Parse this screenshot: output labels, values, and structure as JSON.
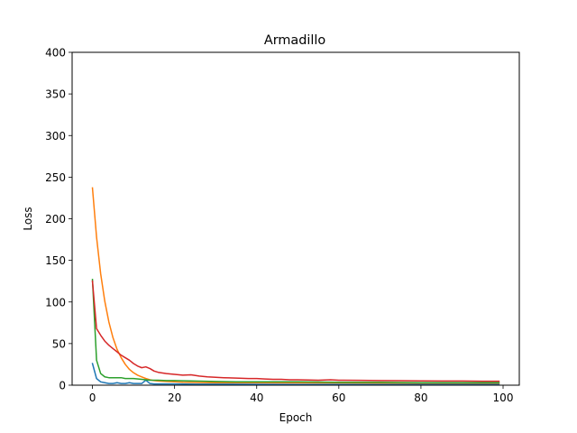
{
  "chart_data": {
    "type": "line",
    "title": "Armadillo",
    "xlabel": "Epoch",
    "ylabel": "Loss",
    "xlim": [
      -4.95,
      103.95
    ],
    "ylim": [
      0,
      400
    ],
    "xticks": [
      0,
      20,
      40,
      60,
      80,
      100
    ],
    "yticks": [
      0,
      50,
      100,
      150,
      200,
      250,
      300,
      350,
      400
    ],
    "grid": false,
    "legend": "none",
    "series": [
      {
        "color": "#1f77b4",
        "x": [
          0,
          1,
          2,
          3,
          4,
          5,
          6,
          7,
          8,
          9,
          10,
          11,
          12,
          13,
          14,
          15,
          16,
          18,
          20,
          25,
          30,
          40,
          50,
          60,
          70,
          80,
          90,
          99
        ],
        "values": [
          26,
          8,
          4,
          3,
          2,
          2,
          3,
          2,
          2,
          3,
          2,
          2,
          2,
          6,
          2,
          1.5,
          1.5,
          1.5,
          1.5,
          1.2,
          1.2,
          1.1,
          1.0,
          1.0,
          1.0,
          1.0,
          1.0,
          1.0
        ]
      },
      {
        "color": "#ff7f0e",
        "x": [
          0,
          1,
          2,
          3,
          4,
          5,
          6,
          7,
          8,
          9,
          10,
          11,
          12,
          13,
          14,
          15,
          16,
          18,
          20,
          22,
          25,
          30,
          35,
          40,
          50,
          60,
          70,
          80,
          90,
          99
        ],
        "values": [
          237,
          178,
          134,
          101,
          76,
          57,
          43,
          33,
          25,
          19,
          15,
          12,
          10,
          8,
          6.5,
          5.5,
          5,
          4.5,
          4,
          3.5,
          3.2,
          3,
          3,
          3,
          2.8,
          2.7,
          2.6,
          2.5,
          2.5,
          2.5
        ]
      },
      {
        "color": "#2ca02c",
        "x": [
          0,
          1,
          2,
          3,
          4,
          5,
          6,
          7,
          8,
          9,
          10,
          12,
          14,
          16,
          18,
          20,
          25,
          30,
          35,
          40,
          50,
          60,
          70,
          80,
          90,
          99
        ],
        "values": [
          127,
          30,
          14,
          10,
          9,
          9,
          9,
          9,
          8,
          8,
          8,
          7,
          6,
          6,
          5.5,
          5.5,
          5,
          4.5,
          4,
          4,
          4,
          3.5,
          3.5,
          3,
          3,
          3
        ]
      },
      {
        "color": "#d62728",
        "x": [
          0,
          1,
          2,
          3,
          4,
          5,
          6,
          7,
          8,
          9,
          10,
          11,
          12,
          13,
          14,
          15,
          16,
          18,
          20,
          22,
          24,
          26,
          28,
          30,
          32,
          35,
          38,
          40,
          42,
          44,
          46,
          48,
          50,
          55,
          58,
          60,
          65,
          70,
          75,
          80,
          85,
          90,
          95,
          99
        ],
        "values": [
          125,
          68,
          60,
          53,
          48,
          44,
          40,
          36,
          33,
          30,
          26,
          23,
          21,
          22,
          20,
          17,
          15.5,
          14,
          13,
          12,
          12.5,
          11,
          10,
          9.5,
          9,
          8.5,
          8,
          8,
          7.5,
          7,
          7,
          6.5,
          6.5,
          6,
          6.5,
          6,
          5.8,
          5.6,
          5.4,
          5.2,
          5,
          5,
          4.8,
          4.8
        ]
      }
    ]
  }
}
